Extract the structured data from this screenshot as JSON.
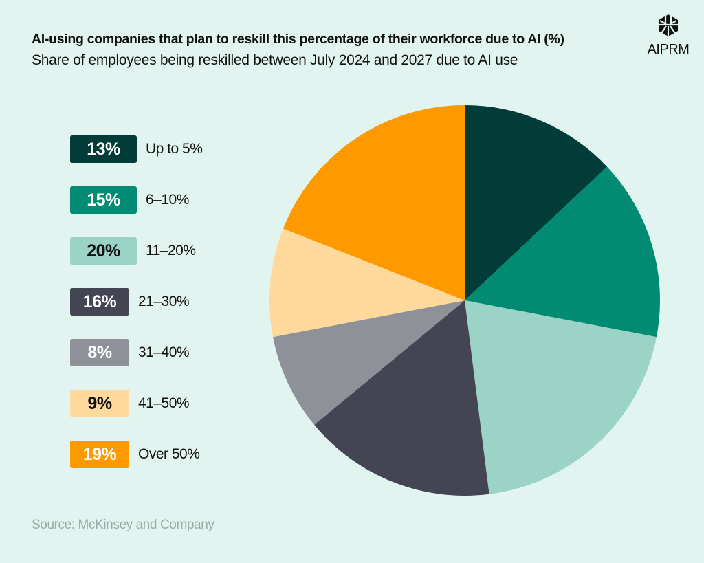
{
  "header": {
    "title": "AI-using companies that plan to reskill this percentage of their workforce due to AI (%)",
    "subtitle": "Share of employees being reskilled between July 2024 and 2027 due to AI use",
    "logo_text": "AIPRM"
  },
  "footer": {
    "source": "Source: McKinsey and Company"
  },
  "chart_data": {
    "type": "pie",
    "title": "AI-using companies that plan to reskill this percentage of their workforce due to AI (%)",
    "subtitle": "Share of employees being reskilled between July 2024 and 2027 due to AI use",
    "start": "12 o'clock, clockwise",
    "legend_position": "left",
    "slices": [
      {
        "label": "Up to 5%",
        "value": 13,
        "display": "13%",
        "color": "#023c38",
        "text_color": "#ffffff"
      },
      {
        "label": "6–10%",
        "value": 15,
        "display": "15%",
        "color": "#008b72",
        "text_color": "#ffffff"
      },
      {
        "label": "11–20%",
        "value": 20,
        "display": "20%",
        "color": "#9bd3c6",
        "text_color": "#111111"
      },
      {
        "label": "21–30%",
        "value": 16,
        "display": "16%",
        "color": "#444552",
        "text_color": "#ffffff"
      },
      {
        "label": "31–40%",
        "value": 8,
        "display": "8%",
        "color": "#8f9199",
        "text_color": "#ffffff"
      },
      {
        "label": "41–50%",
        "value": 9,
        "display": "9%",
        "color": "#ffd89b",
        "text_color": "#111111"
      },
      {
        "label": "Over 50%",
        "value": 19,
        "display": "19%",
        "color": "#ff9900",
        "text_color": "#ffffff"
      }
    ]
  }
}
